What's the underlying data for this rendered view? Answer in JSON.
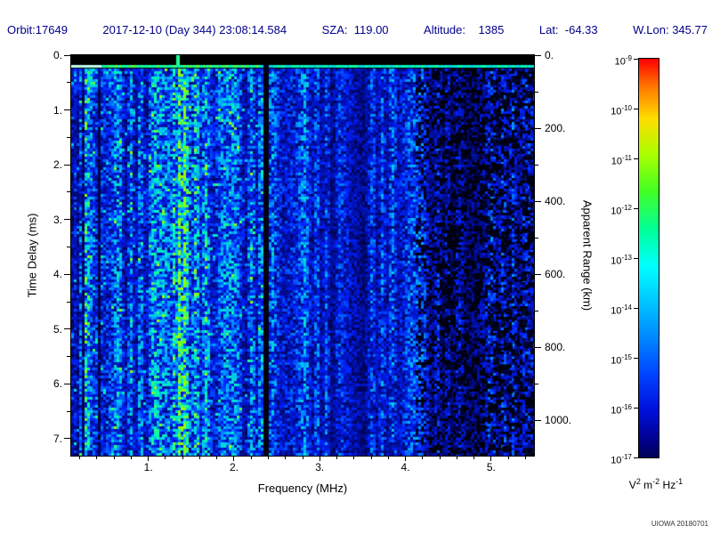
{
  "header": {
    "orbit": "Orbit:17649",
    "datetime": "2017-12-10 (Day 344) 23:08:14.584",
    "sza": "SZA:  119.00",
    "altitude": "Altitude:    1385",
    "lat": "Lat:  -64.33",
    "wlon": "W.Lon: 345.77"
  },
  "footer": {
    "credit": "UIOWA 20180701"
  },
  "colors": {
    "header_text": "#00008b",
    "plot_background": "#000000",
    "colorbar_top": "#ff0000",
    "colorbar_bottom": "#000055"
  },
  "chart_data": {
    "type": "heatmap",
    "subtype": "radar-sounder-ionogram-spectrogram",
    "title": "",
    "xlabel": "Frequency (MHz)",
    "ylabel_left": "Time Delay (ms)",
    "ylabel_right": "Apparent Range (km)",
    "x_range": [
      0.1,
      5.5
    ],
    "x_ticks": [
      1,
      2,
      3,
      4,
      5
    ],
    "x_tick_labels": [
      "1.",
      "2.",
      "3.",
      "4.",
      "5."
    ],
    "y_left_range": [
      0,
      7.31
    ],
    "y_left_ticks": [
      0,
      1,
      2,
      3,
      4,
      5,
      6,
      7
    ],
    "y_left_tick_labels": [
      "0.",
      "1.",
      "2.",
      "3.",
      "4.",
      "5.",
      "6.",
      "7."
    ],
    "y_right_range_km": [
      0,
      1096
    ],
    "y_right_ticks_km": [
      0,
      200,
      400,
      600,
      800,
      1000
    ],
    "y_right_tick_labels": [
      "0.",
      "200.",
      "400.",
      "600.",
      "800.",
      "1000."
    ],
    "km_per_ms": 150,
    "colorbar": {
      "scale": "log",
      "tick_exponents": [
        -9,
        -10,
        -11,
        -12,
        -13,
        -14,
        -15,
        -16,
        -17
      ],
      "unit_parts": [
        [
          "V",
          "2"
        ],
        [
          "m",
          "-2"
        ],
        [
          "Hz",
          "-1"
        ]
      ]
    },
    "features": {
      "description": "Diffuse blue noise field; brighter mottled blue/cyan 0.1-2.35 MHz; dimmer blue with black speckle blobs above 4.1 MHz",
      "top_black_band_ms": [
        0,
        0.18
      ],
      "transmit_line_ms": 0.2,
      "bright_line_mhz": 1.35,
      "secondary_line_mhz": 1.28,
      "dark_gap_mhz": 2.37,
      "dark_lines_mhz": [
        0.22,
        0.3,
        0.42
      ],
      "noise_fade_above_mhz": 2.44,
      "speckle_region_above_mhz": 4.1
    }
  }
}
